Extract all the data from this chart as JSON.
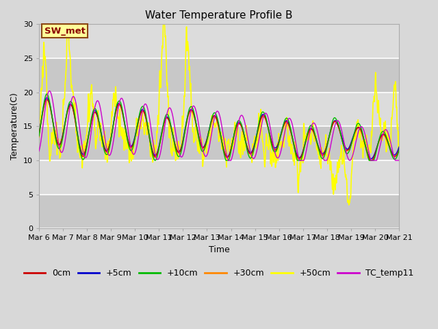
{
  "title": "Water Temperature Profile B",
  "xlabel": "Time",
  "ylabel": "Temperature(C)",
  "ylim": [
    0,
    30
  ],
  "xlim": [
    0,
    360
  ],
  "fig_bg_color": "#d8d8d8",
  "plot_bg_color": "#dcdcdc",
  "annotation_text": "SW_met",
  "annotation_color": "#8b0000",
  "annotation_bg": "#ffff99",
  "annotation_border": "#8b4513",
  "series": {
    "0cm": {
      "color": "#cc0000",
      "lw": 1.0,
      "zorder": 5
    },
    "+5cm": {
      "color": "#0000cc",
      "lw": 1.0,
      "zorder": 4
    },
    "+10cm": {
      "color": "#00bb00",
      "lw": 1.0,
      "zorder": 6
    },
    "+30cm": {
      "color": "#ff8800",
      "lw": 1.0,
      "zorder": 3
    },
    "+50cm": {
      "color": "#ffff00",
      "lw": 1.2,
      "zorder": 2
    },
    "TC_temp11": {
      "color": "#cc00cc",
      "lw": 1.0,
      "zorder": 7
    }
  },
  "xtick_labels": [
    "Mar 6",
    "Mar 7",
    "Mar 8",
    "Mar 9",
    "Mar 10",
    "Mar 11",
    "Mar 12",
    "Mar 13",
    "Mar 14",
    "Mar 15",
    "Mar 16",
    "Mar 17",
    "Mar 18",
    "Mar 19",
    "Mar 20",
    "Mar 21"
  ],
  "xtick_positions": [
    0,
    24,
    48,
    72,
    96,
    120,
    144,
    168,
    192,
    216,
    240,
    264,
    288,
    312,
    336,
    360
  ],
  "ytick_positions": [
    0,
    5,
    10,
    15,
    20,
    25,
    30
  ],
  "grid_color": "#ffffff",
  "title_fontsize": 11,
  "axis_label_fontsize": 9,
  "tick_fontsize": 8,
  "legend_fontsize": 9
}
